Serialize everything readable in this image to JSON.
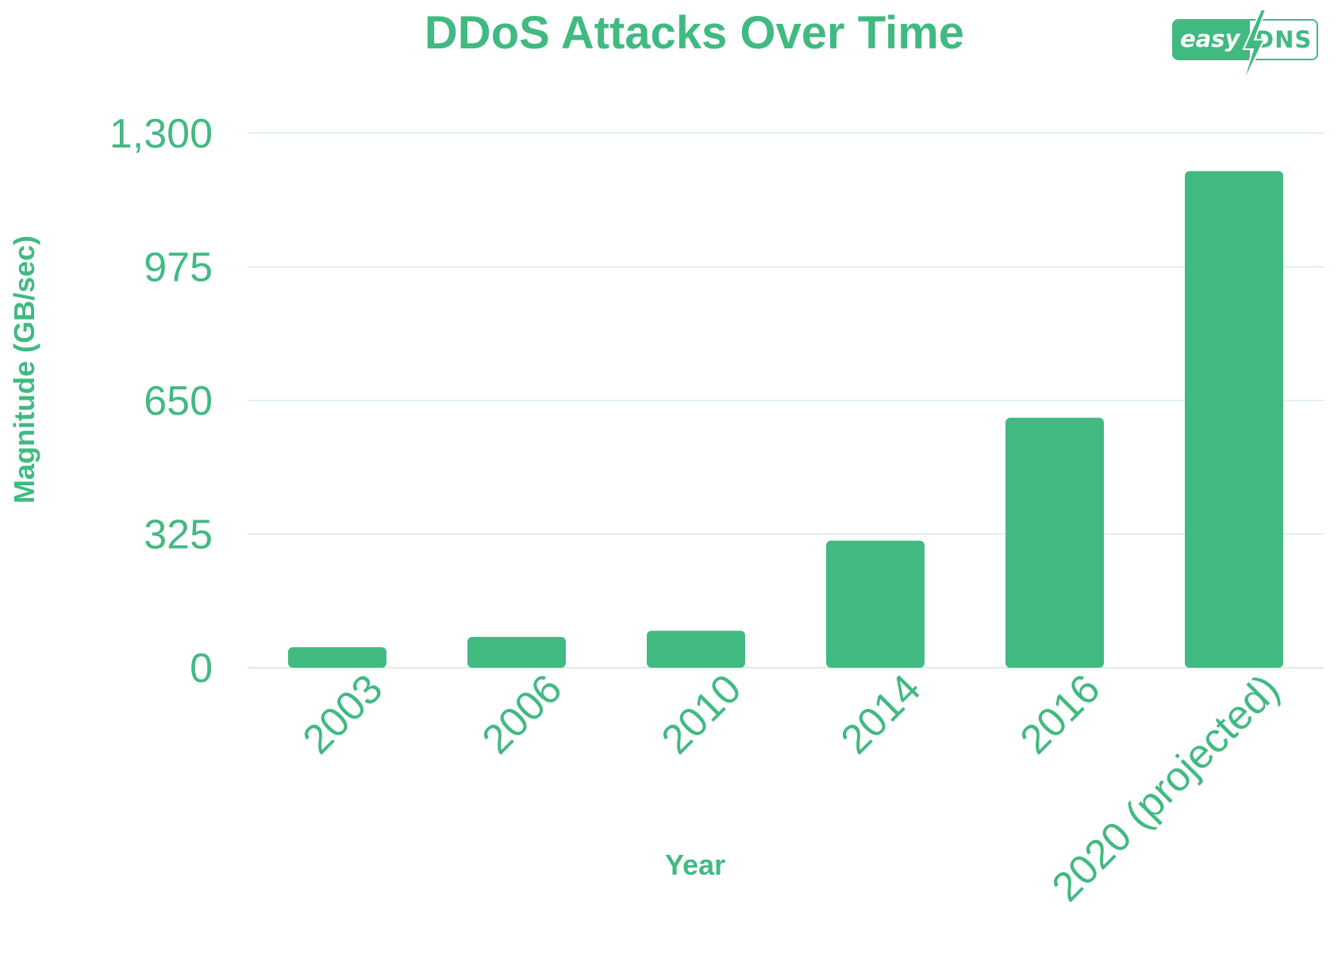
{
  "chart_data": {
    "type": "bar",
    "title": "DDoS Attacks Over Time",
    "xlabel": "Year",
    "ylabel": "Magnitude (GB/sec)",
    "categories": [
      "2003",
      "2006",
      "2010",
      "2014",
      "2016",
      "2020 (projected)"
    ],
    "values": [
      50,
      75,
      90,
      309,
      608,
      1208
    ],
    "ylim": [
      0,
      1300
    ],
    "yticks": [
      0,
      325,
      650,
      975,
      1300
    ],
    "ytick_labels": [
      "0",
      "325",
      "650",
      "975",
      "1,300"
    ],
    "grid": true,
    "color": "#41BA82"
  },
  "logo": {
    "left_text": "easy",
    "right_text": "DNS",
    "icon": "lightning-bolt-icon"
  }
}
